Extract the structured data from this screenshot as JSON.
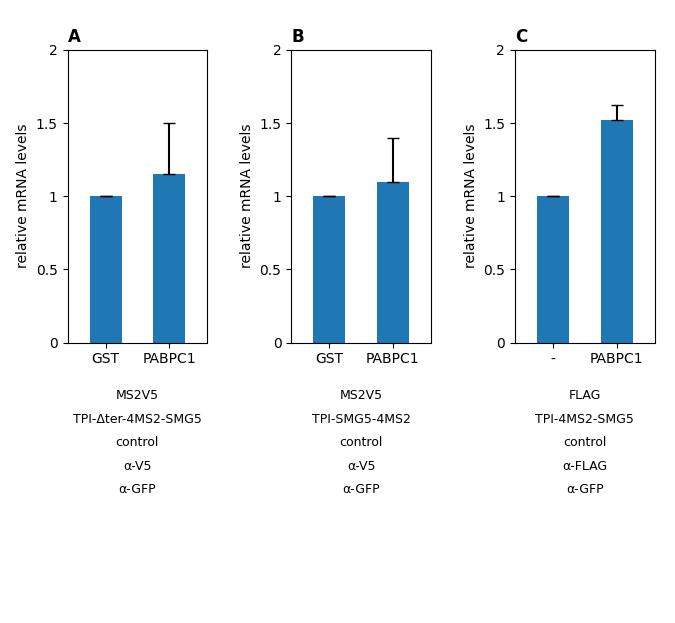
{
  "chart_data": [
    {
      "type": "bar",
      "title": "A",
      "categories": [
        "GST",
        "PABPC1"
      ],
      "values": [
        1.0,
        1.15
      ],
      "errors": [
        0.0,
        0.35
      ],
      "y_label": "relative mRNA levels",
      "ylim": [
        0,
        2
      ],
      "yticks": [
        0,
        0.5,
        1,
        1.5,
        2
      ],
      "annotations": [
        "MS2V5",
        "TPI-Δter-4MS2-SMG5",
        "control",
        "α-V5",
        "α-GFP"
      ]
    },
    {
      "type": "bar",
      "title": "B",
      "categories": [
        "GST",
        "PABPC1"
      ],
      "values": [
        1.0,
        1.1
      ],
      "errors": [
        0.0,
        0.3
      ],
      "y_label": "relative mRNA levels",
      "ylim": [
        0,
        2
      ],
      "yticks": [
        0,
        0.5,
        1,
        1.5,
        2
      ],
      "annotations": [
        "MS2V5",
        "TPI-SMG5-4MS2",
        "control",
        "α-V5",
        "α-GFP"
      ]
    },
    {
      "type": "bar",
      "title": "C",
      "categories": [
        "-",
        "PABPC1"
      ],
      "values": [
        1.0,
        1.52
      ],
      "errors": [
        0.0,
        0.1
      ],
      "y_label": "relative mRNA levels",
      "ylim": [
        0,
        2
      ],
      "yticks": [
        0,
        0.5,
        1,
        1.5,
        2
      ],
      "annotations": [
        "FLAG",
        "TPI-4MS2-SMG5",
        "control",
        "α-FLAG",
        "α-GFP"
      ]
    }
  ]
}
